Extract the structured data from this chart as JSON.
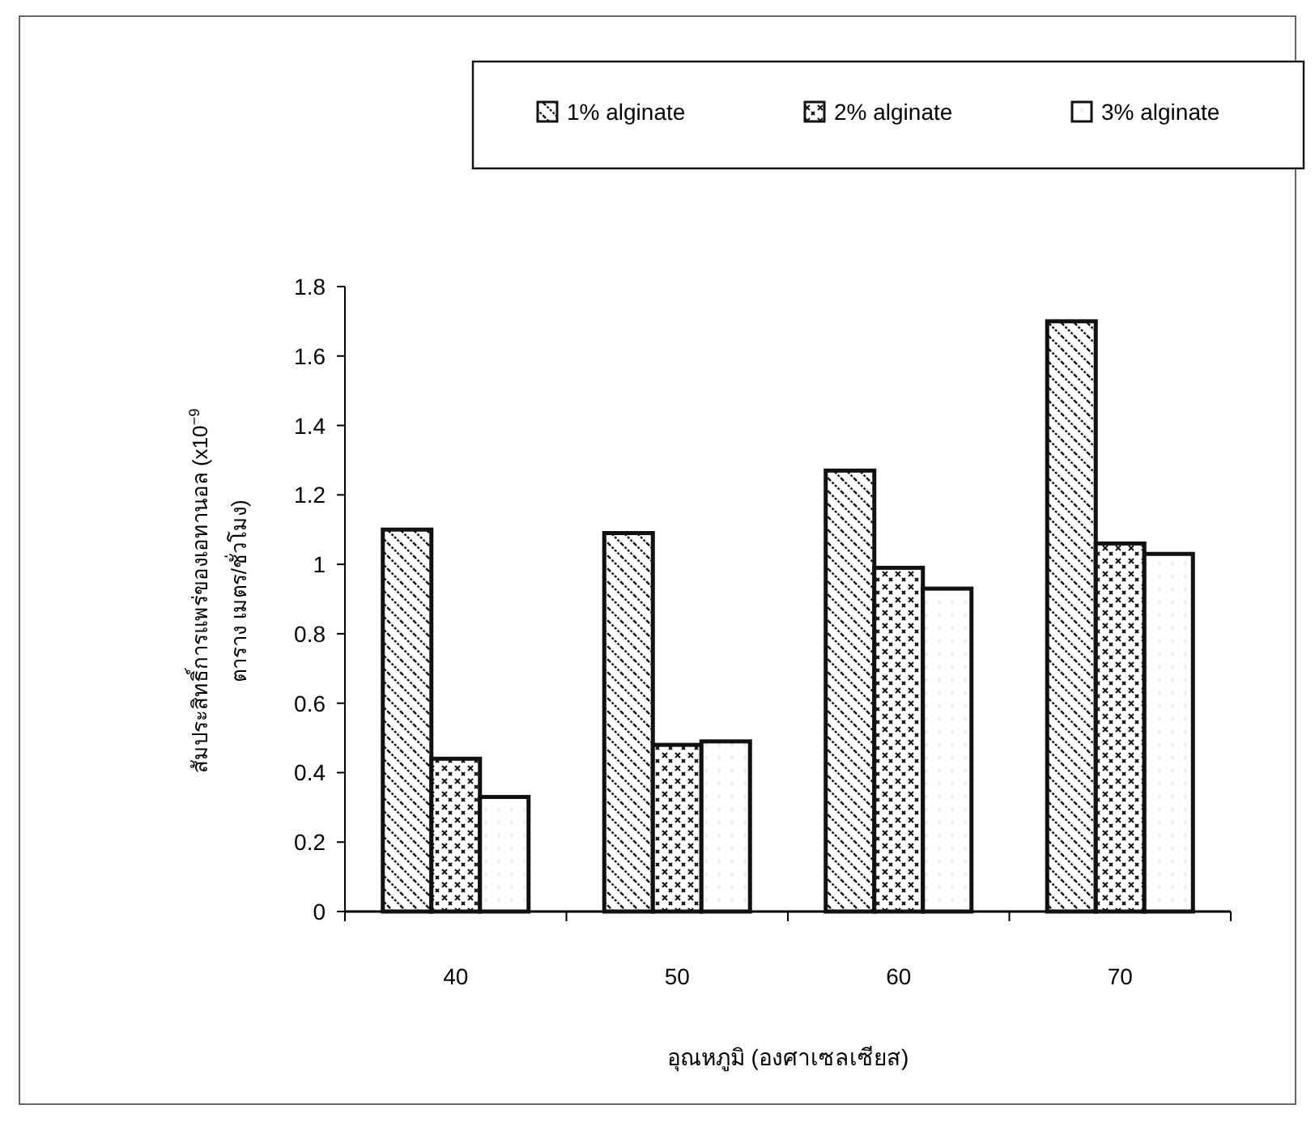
{
  "chart_data": {
    "type": "bar",
    "xlabel": "อุณหภูมิ (องศาเซลเซียส)",
    "ylabel": "สัมประสิทธิ์การแพร่ของเอทานอล (x10$^{−9}$ ตาราง เมตร/ชั่วโมง)",
    "categories": [
      "40",
      "50",
      "60",
      "70"
    ],
    "series": [
      {
        "name": "1% alginate",
        "color": "#111111",
        "values": [
          1.1,
          1.09,
          1.27,
          1.7
        ]
      },
      {
        "name": "2% alginate",
        "color": "#111111",
        "values": [
          0.44,
          0.48,
          0.99,
          1.06
        ]
      },
      {
        "name": "3% alginate",
        "color": "#111111",
        "values": [
          0.33,
          0.49,
          0.93,
          1.03
        ]
      }
    ],
    "ylim": [
      0,
      1.8
    ],
    "yticks": [
      0,
      0.2,
      0.4,
      0.6,
      0.8,
      1,
      1.2,
      1.4,
      1.6,
      1.8
    ],
    "legend": "top"
  }
}
